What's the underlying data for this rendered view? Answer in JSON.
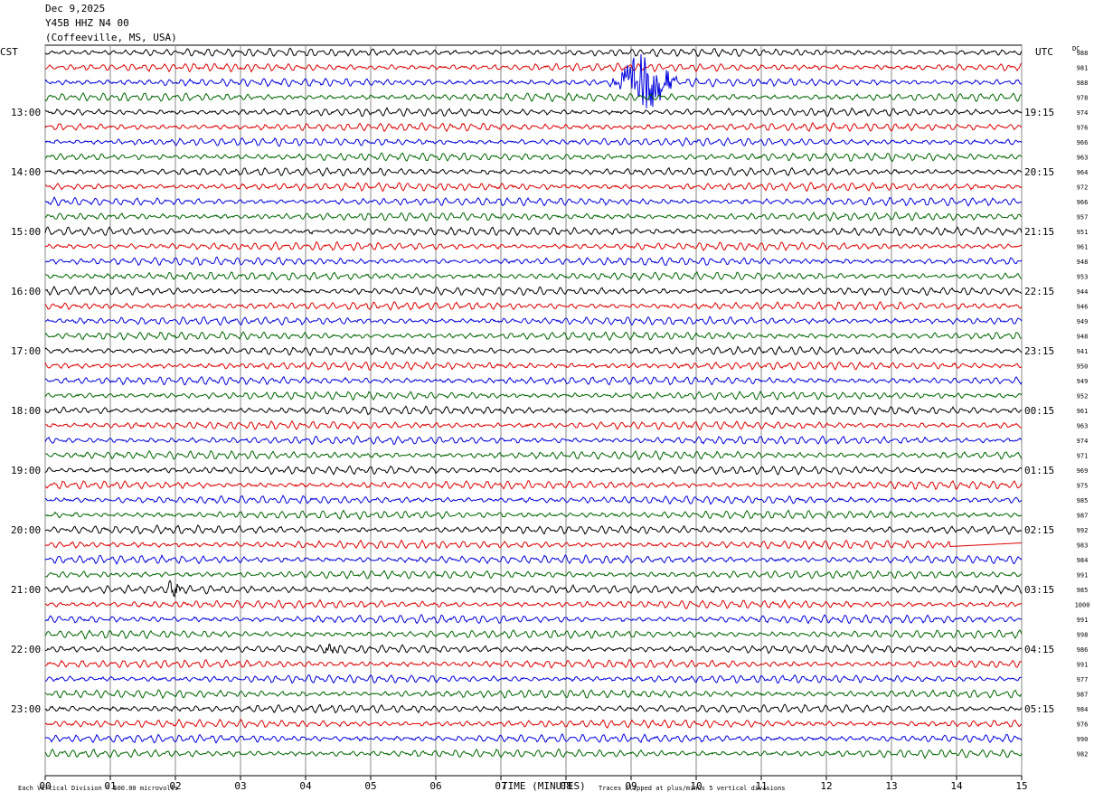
{
  "header": {
    "date": "Dec 9,2025",
    "station": "Y45B HHZ N4 00",
    "location": "(Coffeeville, MS, USA)"
  },
  "left_axis_label": "CST",
  "right_axis_label": "UTC",
  "dc_label": "DC",
  "footer": {
    "scale_note": "Each Vertical Division =  500.00 microvolts",
    "clip_note": "Traces clipped at plus/minus 5 vertical divisions"
  },
  "colors": [
    "#000000",
    "#dd0000",
    "#0000dd",
    "#006600"
  ],
  "chart_data": {
    "type": "line",
    "xlabel": "TIME (MINUTES)",
    "xlim": [
      0,
      15
    ],
    "x_ticks": [
      "00",
      "01",
      "02",
      "03",
      "04",
      "05",
      "06",
      "07",
      "08",
      "09",
      "10",
      "11",
      "12",
      "13",
      "14",
      "15"
    ],
    "row_count": 48,
    "left_hour_labels": [
      {
        "row": 4,
        "label": "13:00"
      },
      {
        "row": 8,
        "label": "14:00"
      },
      {
        "row": 12,
        "label": "15:00"
      },
      {
        "row": 16,
        "label": "16:00"
      },
      {
        "row": 20,
        "label": "17:00"
      },
      {
        "row": 24,
        "label": "18:00"
      },
      {
        "row": 28,
        "label": "19:00"
      },
      {
        "row": 32,
        "label": "20:00"
      },
      {
        "row": 36,
        "label": "21:00"
      },
      {
        "row": 40,
        "label": "22:00"
      },
      {
        "row": 44,
        "label": "23:00"
      }
    ],
    "right_hour_labels": [
      {
        "row": 4,
        "label": "19:15"
      },
      {
        "row": 8,
        "label": "20:15"
      },
      {
        "row": 12,
        "label": "21:15"
      },
      {
        "row": 16,
        "label": "22:15"
      },
      {
        "row": 20,
        "label": "23:15"
      },
      {
        "row": 24,
        "label": "00:15"
      },
      {
        "row": 28,
        "label": "01:15"
      },
      {
        "row": 32,
        "label": "02:15"
      },
      {
        "row": 36,
        "label": "03:15"
      },
      {
        "row": 40,
        "label": "04:15"
      },
      {
        "row": 44,
        "label": "05:15"
      }
    ],
    "dc_offsets": [
      "988",
      "981",
      "988",
      "978",
      "974",
      "976",
      "966",
      "963",
      "964",
      "972",
      "966",
      "957",
      "951",
      "961",
      "948",
      "953",
      "944",
      "946",
      "949",
      "948",
      "941",
      "950",
      "949",
      "952",
      "961",
      "963",
      "974",
      "971",
      "969",
      "975",
      "985",
      "987",
      "992",
      "983",
      "984",
      "991",
      "985",
      "1000",
      "991",
      "998",
      "986",
      "991",
      "977",
      "987",
      "984",
      "976",
      "990",
      "982"
    ],
    "events": [
      {
        "row": 2,
        "start_min": 8.65,
        "end_min": 9.7,
        "peak_min": 9.2,
        "description_amp": "large"
      },
      {
        "row": 33,
        "start_min": 13.9,
        "end_min": 15.0,
        "type": "flatline"
      },
      {
        "row": 36,
        "start_min": 1.9,
        "end_min": 2.1,
        "description_amp": "small"
      },
      {
        "row": 40,
        "start_min": 4.3,
        "end_min": 4.5,
        "description_amp": "small"
      }
    ]
  }
}
